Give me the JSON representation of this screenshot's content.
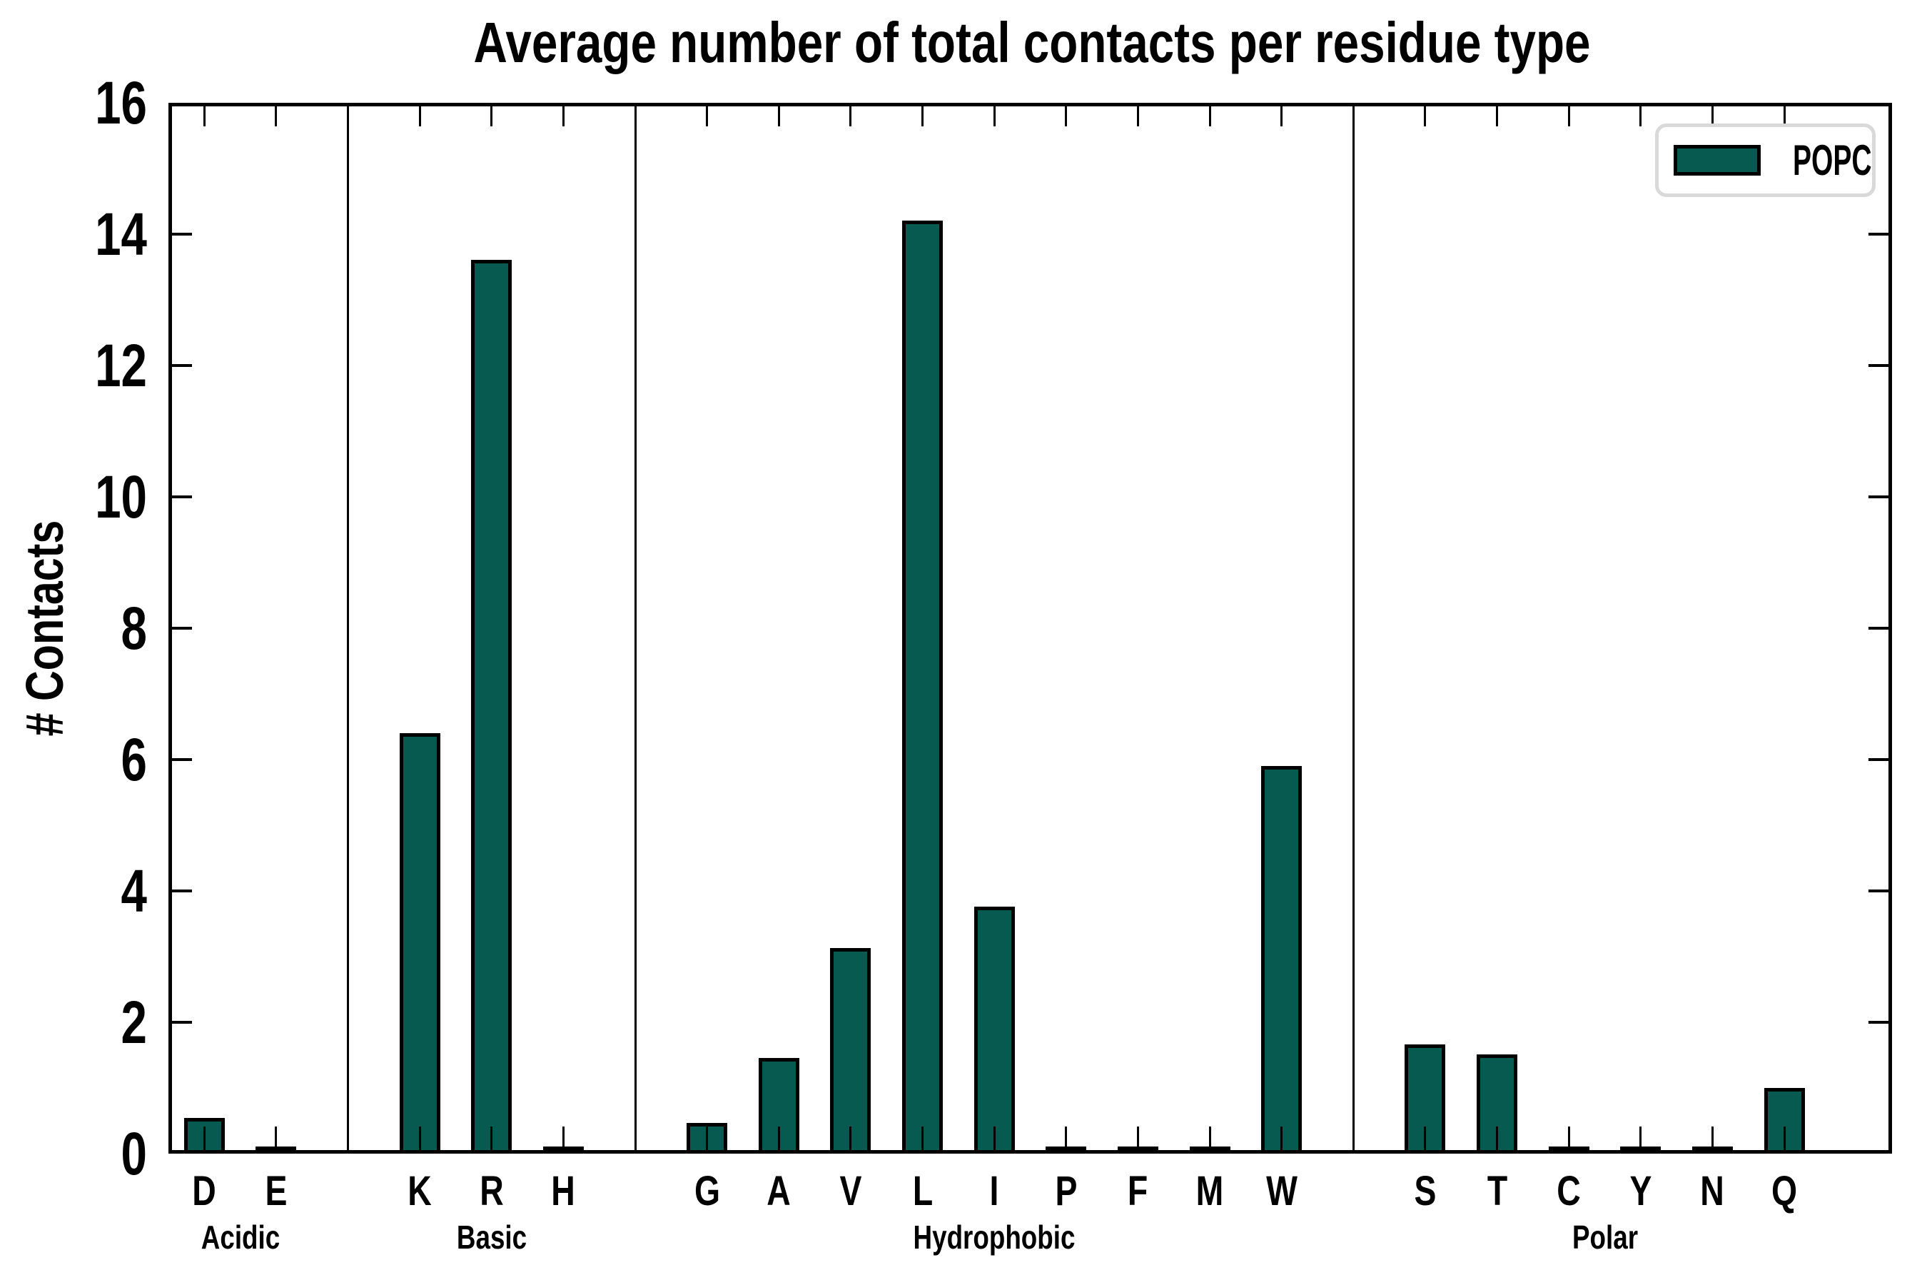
{
  "page": {
    "background": "#ffffff"
  },
  "chart_data": {
    "type": "bar",
    "title": "Average number of total contacts per residue type",
    "ylabel": "# Contacts",
    "xlabel": "",
    "ylim": [
      0,
      16
    ],
    "yticks": [
      0,
      2,
      4,
      6,
      8,
      10,
      12,
      14,
      16
    ],
    "grid": false,
    "legend": {
      "label": "POPC",
      "position": "upper right"
    },
    "bar_color": "#065a50",
    "bar_edge_color": "#000000",
    "separator_color": "#000000",
    "groups": [
      {
        "name": "Acidic",
        "residues": [
          "D",
          "E"
        ],
        "values": [
          0.49,
          0.02
        ]
      },
      {
        "name": "Basic",
        "residues": [
          "K",
          "R",
          "H"
        ],
        "values": [
          6.35,
          13.55,
          0.02
        ]
      },
      {
        "name": "Hydrophobic",
        "residues": [
          "G",
          "A",
          "V",
          "L",
          "I",
          "P",
          "F",
          "M",
          "W"
        ],
        "values": [
          0.41,
          1.4,
          3.08,
          14.15,
          3.71,
          0.02,
          0.02,
          0.02,
          5.85
        ]
      },
      {
        "name": "Polar",
        "residues": [
          "S",
          "T",
          "C",
          "Y",
          "N",
          "Q"
        ],
        "values": [
          1.61,
          1.46,
          0.02,
          0.02,
          0.02,
          0.95
        ]
      }
    ]
  }
}
